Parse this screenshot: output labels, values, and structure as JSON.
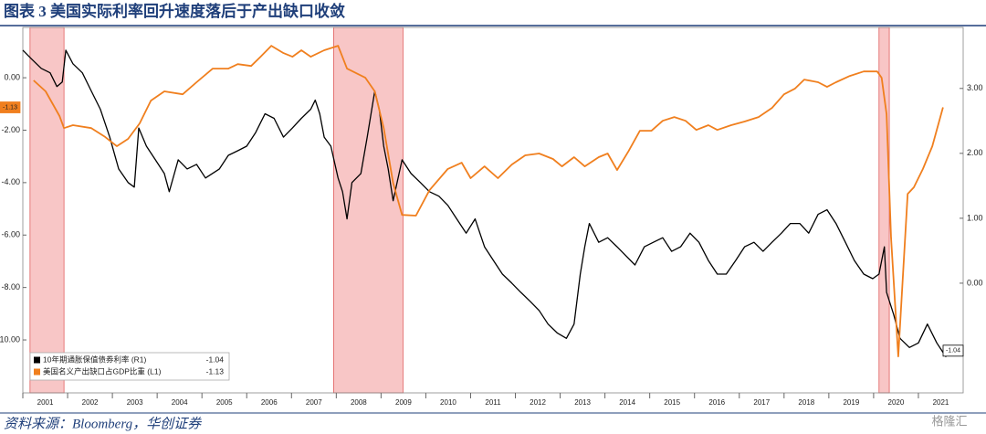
{
  "chart_data": {
    "type": "line",
    "title": "图表 3  美国实际利率回升速度落后于产出缺口收敛",
    "source": "资料来源：Bloomberg，华创证券",
    "watermark": "格隆汇",
    "xlim": [
      2001,
      2022
    ],
    "xticks": [
      2001,
      2002,
      2003,
      2004,
      2005,
      2006,
      2007,
      2008,
      2009,
      2010,
      2011,
      2012,
      2013,
      2014,
      2015,
      2016,
      2017,
      2018,
      2019,
      2020,
      2021
    ],
    "ylim": [
      -12.02,
      1.92
    ],
    "yticks": [
      {
        "value": 0,
        "label": "0.00"
      },
      {
        "value": -2,
        "label": "-2.00"
      },
      {
        "value": -4,
        "label": "-4.00"
      },
      {
        "value": -6,
        "label": "-6.00"
      },
      {
        "value": -8,
        "label": "-8.00"
      },
      {
        "value": -10,
        "label": "-10.00"
      }
    ],
    "y2lim": [
      -1.69,
      3.94
    ],
    "y2ticks": [
      {
        "value": 3,
        "label": "3.00"
      },
      {
        "value": 2,
        "label": "2.00"
      },
      {
        "value": 1,
        "label": "1.00"
      },
      {
        "value": 0,
        "label": "0.00"
      }
    ],
    "shaded": [
      [
        2001.16,
        2001.92
      ],
      [
        2007.94,
        2009.49
      ],
      [
        2020.12,
        2020.35
      ]
    ],
    "shade_color": "#f4a0a0",
    "legend": "lower left",
    "series": [
      {
        "name": "10年期通胀保值债券利率 (R1)",
        "color": "#000000",
        "axis": "y2",
        "value_label": "-1.04",
        "x": [
          2001.0,
          2001.2,
          2001.41,
          2001.61,
          2001.76,
          2001.88,
          2001.96,
          2002.12,
          2002.33,
          2002.53,
          2002.73,
          2002.94,
          2003.14,
          2003.35,
          2003.49,
          2003.59,
          2003.76,
          2003.96,
          2004.16,
          2004.27,
          2004.47,
          2004.67,
          2004.88,
          2005.08,
          2005.39,
          2005.59,
          2005.8,
          2006.0,
          2006.2,
          2006.41,
          2006.61,
          2006.82,
          2007.02,
          2007.22,
          2007.43,
          2007.53,
          2007.63,
          2007.73,
          2007.88,
          2008.04,
          2008.14,
          2008.24,
          2008.35,
          2008.55,
          2008.69,
          2008.86,
          2008.96,
          2009.06,
          2009.16,
          2009.27,
          2009.47,
          2009.67,
          2009.88,
          2010.08,
          2010.29,
          2010.49,
          2010.69,
          2010.9,
          2011.1,
          2011.31,
          2011.51,
          2011.71,
          2011.92,
          2012.12,
          2012.33,
          2012.53,
          2012.73,
          2012.94,
          2013.14,
          2013.31,
          2013.45,
          2013.55,
          2013.65,
          2013.86,
          2014.06,
          2014.27,
          2014.47,
          2014.67,
          2014.88,
          2015.08,
          2015.29,
          2015.49,
          2015.69,
          2015.9,
          2016.1,
          2016.31,
          2016.51,
          2016.71,
          2016.92,
          2017.12,
          2017.33,
          2017.53,
          2017.73,
          2017.94,
          2018.14,
          2018.35,
          2018.55,
          2018.76,
          2018.96,
          2019.16,
          2019.37,
          2019.57,
          2019.78,
          2019.98,
          2020.12,
          2020.24,
          2020.29,
          2020.45,
          2020.59,
          2020.8,
          2021.0,
          2021.2,
          2021.41,
          2021.61,
          2021.71
        ],
        "values": [
          3.59,
          3.45,
          3.31,
          3.24,
          3.03,
          3.1,
          3.59,
          3.38,
          3.24,
          2.96,
          2.68,
          2.25,
          1.76,
          1.55,
          1.48,
          2.39,
          2.11,
          1.9,
          1.69,
          1.41,
          1.9,
          1.76,
          1.83,
          1.62,
          1.76,
          1.97,
          2.04,
          2.11,
          2.32,
          2.61,
          2.54,
          2.25,
          2.39,
          2.54,
          2.68,
          2.82,
          2.61,
          2.25,
          2.11,
          1.62,
          1.41,
          0.99,
          1.55,
          1.69,
          2.25,
          2.96,
          2.68,
          2.11,
          1.76,
          1.27,
          1.9,
          1.69,
          1.55,
          1.41,
          1.34,
          1.2,
          0.99,
          0.77,
          0.99,
          0.56,
          0.35,
          0.14,
          0.0,
          -0.14,
          -0.28,
          -0.42,
          -0.63,
          -0.77,
          -0.85,
          -0.63,
          0.14,
          0.56,
          0.92,
          0.63,
          0.7,
          0.56,
          0.42,
          0.28,
          0.56,
          0.63,
          0.7,
          0.49,
          0.56,
          0.77,
          0.63,
          0.35,
          0.14,
          0.14,
          0.35,
          0.56,
          0.63,
          0.49,
          0.63,
          0.77,
          0.92,
          0.92,
          0.77,
          1.06,
          1.13,
          0.92,
          0.63,
          0.35,
          0.14,
          0.07,
          0.14,
          0.56,
          -0.14,
          -0.49,
          -0.85,
          -0.99,
          -0.92,
          -0.63,
          -0.92,
          -1.13,
          -1.04
        ]
      },
      {
        "name": "美国名义产出缺口占GDP比重 (L1)",
        "color": "#f07f1e",
        "axis": "y",
        "value_label": "-1.13",
        "x": [
          2001.24,
          2001.51,
          2001.82,
          2001.92,
          2002.12,
          2002.53,
          2002.84,
          2003.1,
          2003.35,
          2003.61,
          2003.86,
          2004.16,
          2004.57,
          2004.88,
          2005.24,
          2005.59,
          2005.8,
          2006.1,
          2006.31,
          2006.55,
          2006.82,
          2007.02,
          2007.22,
          2007.43,
          2007.73,
          2008.04,
          2008.24,
          2008.65,
          2008.86,
          2009.06,
          2009.27,
          2009.47,
          2009.78,
          2010.08,
          2010.49,
          2010.8,
          2011.0,
          2011.31,
          2011.61,
          2011.92,
          2012.22,
          2012.53,
          2012.84,
          2013.04,
          2013.31,
          2013.55,
          2013.86,
          2014.06,
          2014.27,
          2014.53,
          2014.78,
          2015.04,
          2015.29,
          2015.55,
          2015.8,
          2016.04,
          2016.31,
          2016.51,
          2016.82,
          2017.12,
          2017.43,
          2017.73,
          2018.0,
          2018.24,
          2018.45,
          2018.76,
          2018.96,
          2019.16,
          2019.47,
          2019.78,
          2020.08,
          2020.18,
          2020.29,
          2020.39,
          2020.55,
          2020.76,
          2020.9,
          2021.1,
          2021.31,
          2021.55
        ],
        "values": [
          -0.1,
          -0.52,
          -1.46,
          -1.92,
          -1.81,
          -1.92,
          -2.26,
          -2.61,
          -2.33,
          -1.74,
          -0.87,
          -0.52,
          -0.63,
          -0.17,
          0.35,
          0.35,
          0.52,
          0.45,
          0.8,
          1.22,
          0.94,
          0.8,
          1.05,
          0.8,
          1.05,
          1.22,
          0.35,
          0,
          -0.52,
          -1.92,
          -4.01,
          -5.23,
          -5.26,
          -4.29,
          -3.48,
          -3.24,
          -3.83,
          -3.38,
          -3.83,
          -3.31,
          -2.96,
          -2.89,
          -3.1,
          -3.38,
          -3.03,
          -3.38,
          -3.03,
          -2.89,
          -3.52,
          -2.79,
          -2.02,
          -2.02,
          -1.64,
          -1.5,
          -1.64,
          -1.99,
          -1.81,
          -1.99,
          -1.81,
          -1.67,
          -1.5,
          -1.15,
          -0.63,
          -0.42,
          -0.07,
          -0.17,
          -0.35,
          -0.17,
          0.07,
          0.24,
          0.24,
          0,
          -1.39,
          -6.1,
          -10.63,
          -4.43,
          -4.18,
          -3.48,
          -2.61,
          -1.13
        ]
      }
    ]
  }
}
